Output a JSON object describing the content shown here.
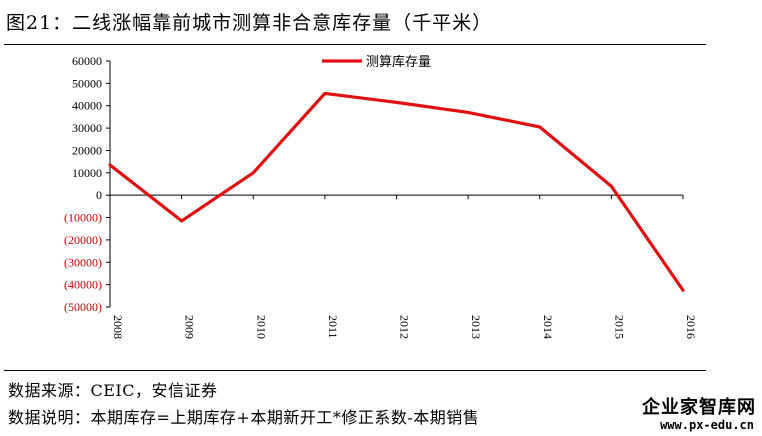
{
  "title": "图21：二线涨幅靠前城市测算非合意库存量（千平米）",
  "source": "数据来源：CEIC，安信证券",
  "note": "数据说明：本期库存=上期库存+本期新开工*修正系数-本期销售",
  "watermark": {
    "name": "企业家智库网",
    "url": "www.px-edu.cn"
  },
  "colors": {
    "line": "#e01010",
    "negative_tick": "#cc0000"
  },
  "chart_data": {
    "type": "line",
    "categories": [
      "2008",
      "2009",
      "2010",
      "2011",
      "2012",
      "2013",
      "2014",
      "2015",
      "2016"
    ],
    "series": [
      {
        "name": "测算库存量",
        "values": [
          13500,
          -11500,
          10000,
          45500,
          41500,
          37000,
          30500,
          4000,
          -42500
        ]
      }
    ],
    "y_ticks": [
      "60000",
      "50000",
      "40000",
      "30000",
      "20000",
      "10000",
      "0",
      "(10000)",
      "(20000)",
      "(30000)",
      "(40000)",
      "(50000)"
    ],
    "ylim": [
      -50000,
      60000
    ],
    "legend_position": "top-center",
    "grid": false
  }
}
